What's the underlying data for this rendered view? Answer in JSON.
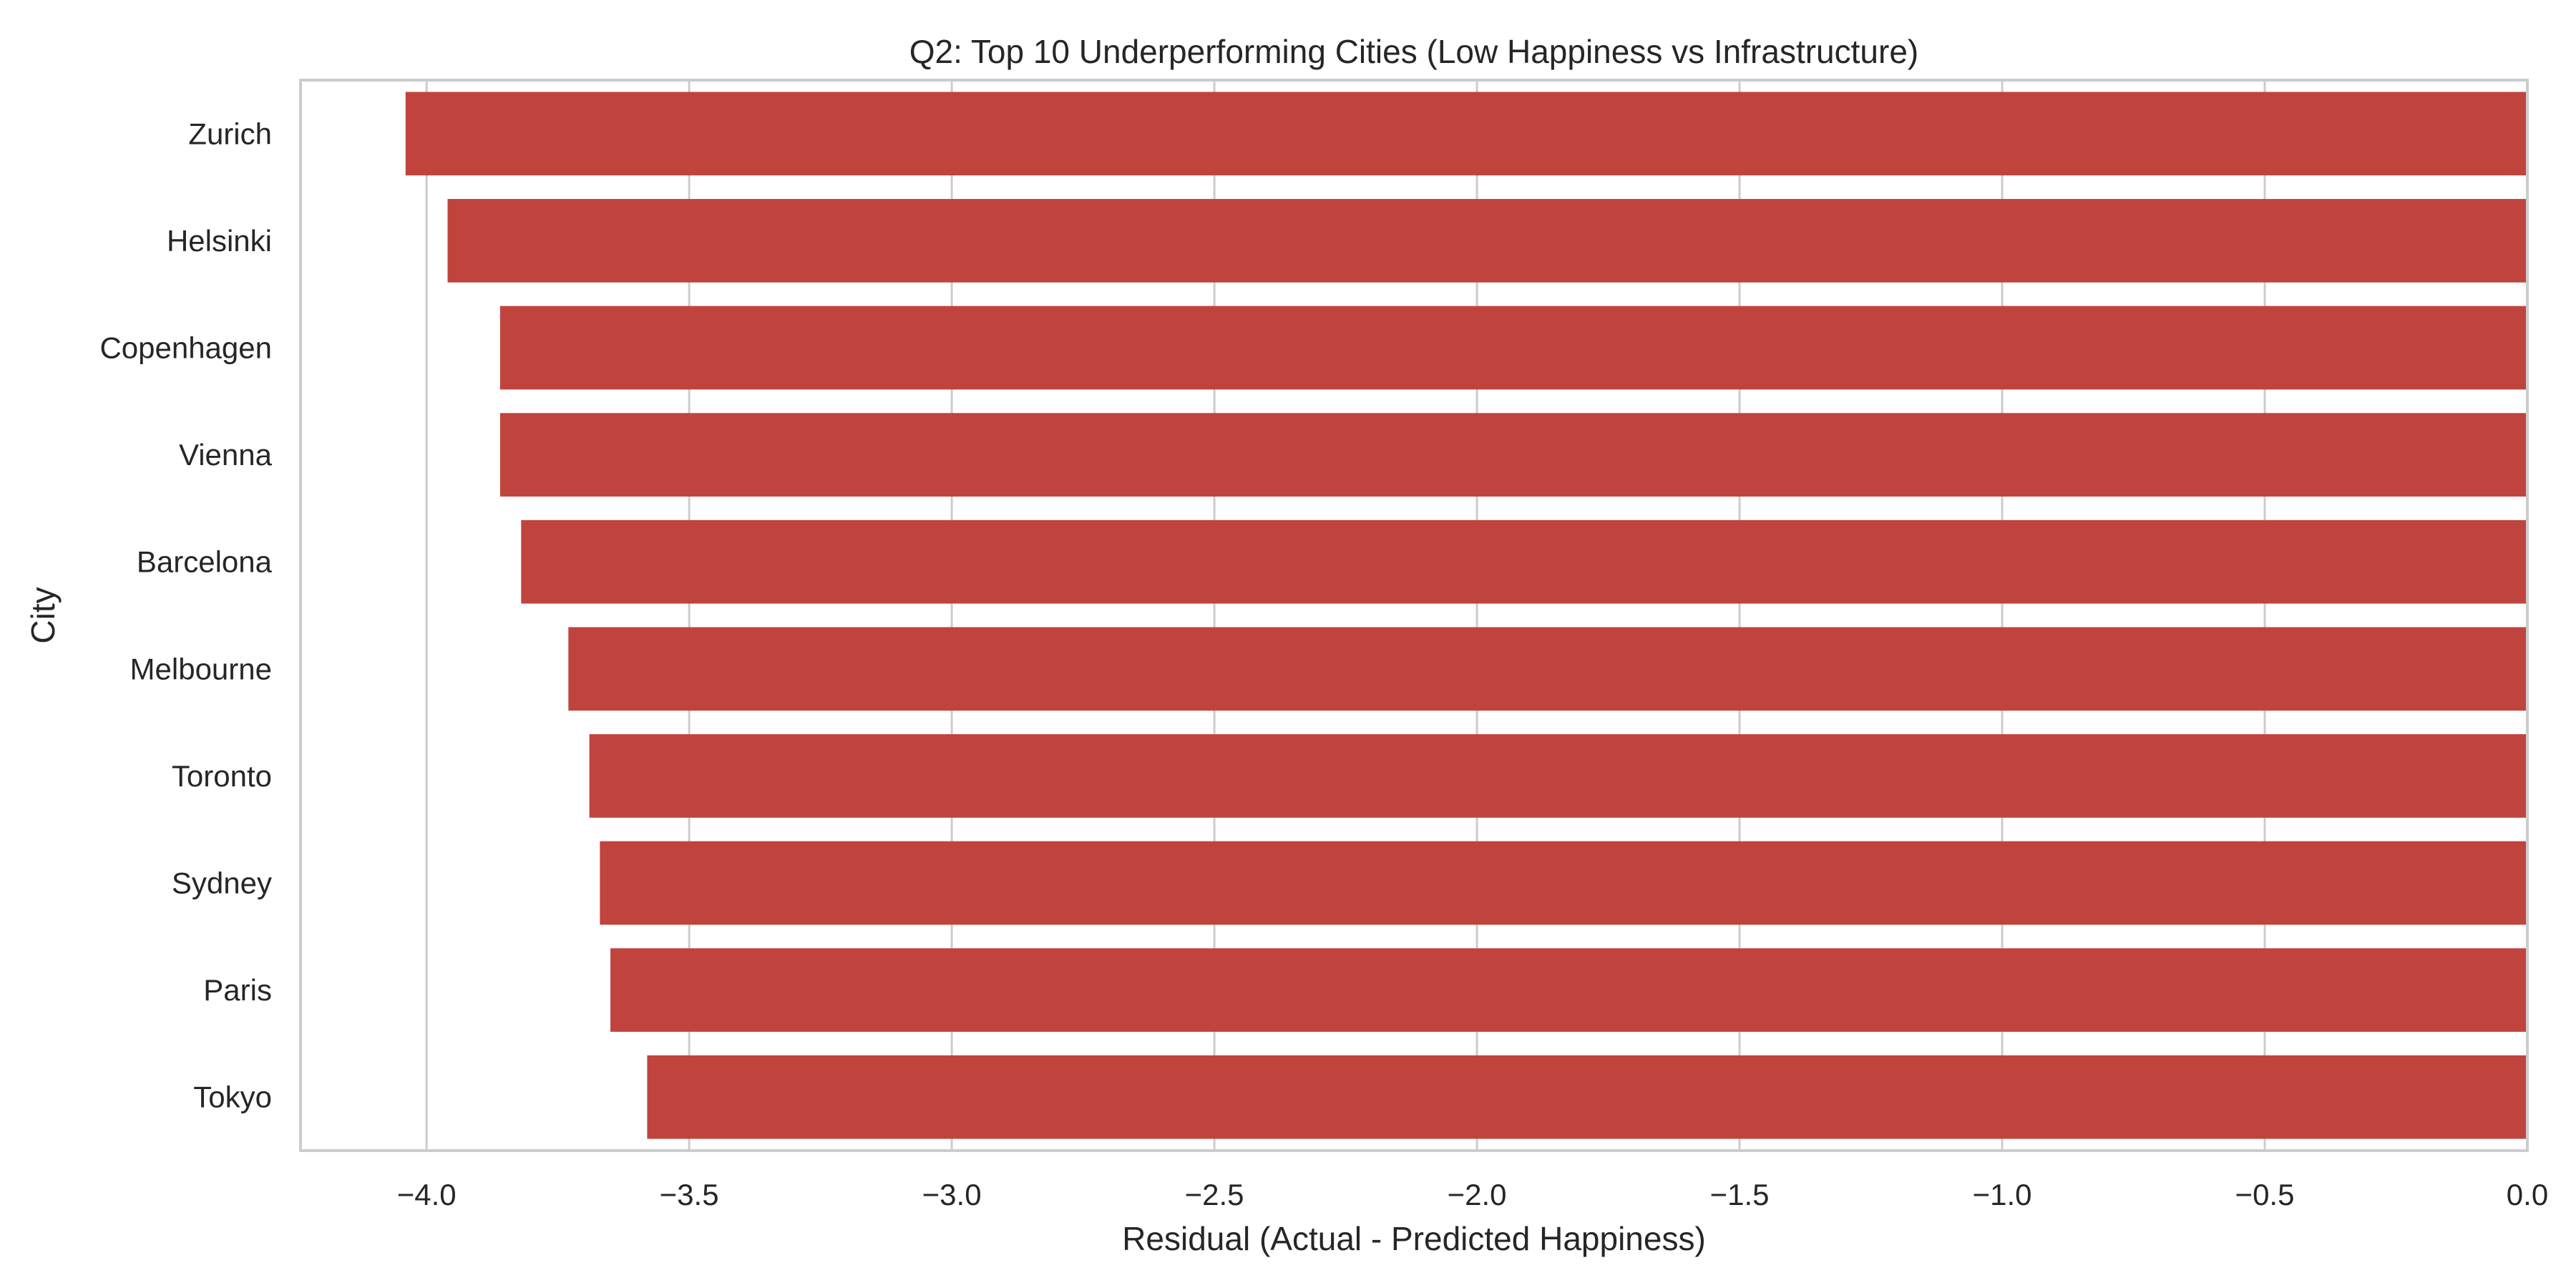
{
  "chart_data": {
    "type": "bar",
    "orientation": "horizontal",
    "title": "Q2: Top 10 Underperforming Cities (Low Happiness vs Infrastructure)",
    "xlabel": "Residual (Actual - Predicted Happiness)",
    "ylabel": "City",
    "categories": [
      "Zurich",
      "Helsinki",
      "Copenhagen",
      "Vienna",
      "Barcelona",
      "Melbourne",
      "Toronto",
      "Sydney",
      "Paris",
      "Tokyo"
    ],
    "values": [
      -4.04,
      -3.96,
      -3.86,
      -3.86,
      -3.82,
      -3.73,
      -3.69,
      -3.67,
      -3.65,
      -3.58
    ],
    "xlim": [
      -4.24,
      0.0
    ],
    "xticks": [
      -4.0,
      -3.5,
      -3.0,
      -2.5,
      -2.0,
      -1.5,
      -1.0,
      -0.5,
      0.0
    ],
    "xtick_labels": [
      "−4.0",
      "−3.5",
      "−3.0",
      "−2.5",
      "−2.0",
      "−1.5",
      "−1.0",
      "−0.5",
      "0.0"
    ],
    "grid": true,
    "colors": {
      "bar": "#c0443d",
      "grid": "#cccccc",
      "spine": "#cccccc",
      "text": "#262626"
    }
  }
}
